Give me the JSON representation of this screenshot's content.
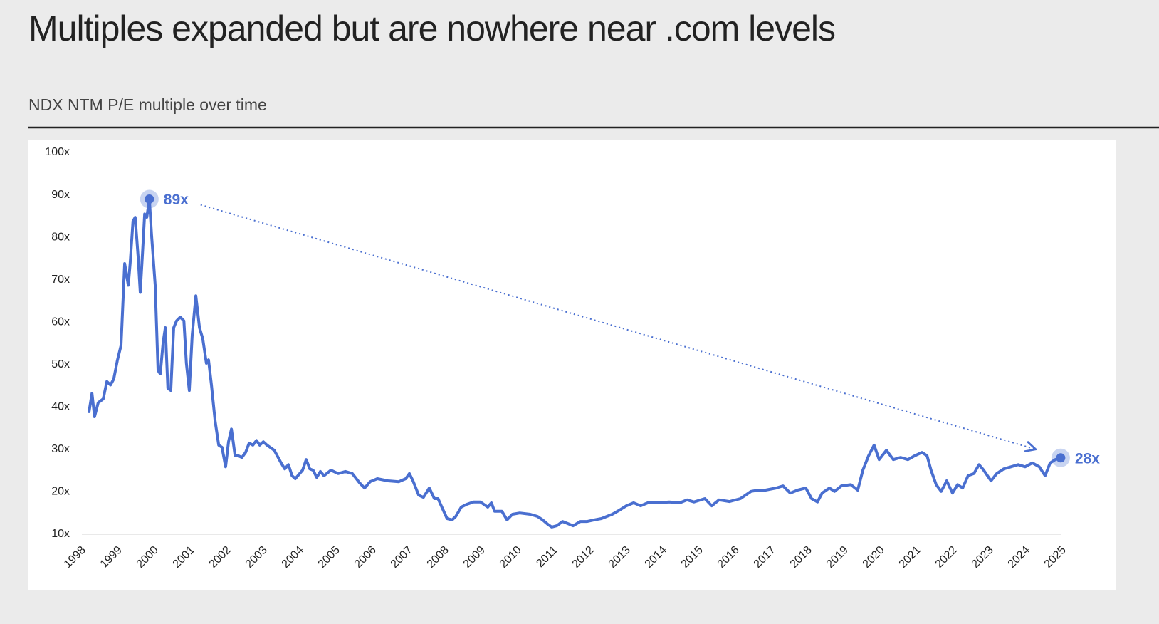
{
  "chart_data": {
    "type": "line",
    "title": "Multiples expanded but are nowhere near .com levels",
    "subtitle": "NDX NTM P/E multiple over time",
    "xlim": [
      1998,
      2025
    ],
    "xticks": [
      1998,
      1999,
      2000,
      2001,
      2002,
      2003,
      2004,
      2005,
      2006,
      2007,
      2008,
      2009,
      2010,
      2011,
      2012,
      2013,
      2014,
      2015,
      2016,
      2017,
      2018,
      2019,
      2020,
      2021,
      2022,
      2023,
      2024,
      2025
    ],
    "ylim": [
      10,
      100
    ],
    "yticks": [
      {
        "value": 10,
        "label": "10x"
      },
      {
        "value": 20,
        "label": "20x"
      },
      {
        "value": 30,
        "label": "30x"
      },
      {
        "value": 40,
        "label": "40x"
      },
      {
        "value": 50,
        "label": "50x"
      },
      {
        "value": 60,
        "label": "60x"
      },
      {
        "value": 70,
        "label": "70x"
      },
      {
        "value": 80,
        "label": "80x"
      },
      {
        "value": 90,
        "label": "90x"
      },
      {
        "value": 100,
        "label": "100x"
      }
    ],
    "grid": false,
    "series": [
      {
        "color": "#4a6fd0",
        "x": [
          1998.14,
          1998.22,
          1998.29,
          1998.39,
          1998.53,
          1998.63,
          1998.73,
          1998.82,
          1998.92,
          1999.02,
          1999.12,
          1999.22,
          1999.27,
          1999.35,
          1999.41,
          1999.49,
          1999.55,
          1999.61,
          1999.67,
          1999.73,
          1999.8,
          1999.86,
          1999.96,
          2000.04,
          2000.1,
          2000.18,
          2000.24,
          2000.31,
          2000.39,
          2000.47,
          2000.55,
          2000.65,
          2000.75,
          2000.82,
          2000.9,
          2000.98,
          2001.08,
          2001.18,
          2001.27,
          2001.37,
          2001.43,
          2001.51,
          2001.61,
          2001.71,
          2001.8,
          2001.9,
          2001.98,
          2002.06,
          2002.16,
          2002.25,
          2002.35,
          2002.45,
          2002.55,
          2002.65,
          2002.75,
          2002.84,
          2002.94,
          2003.04,
          2003.24,
          2003.43,
          2003.53,
          2003.63,
          2003.73,
          2003.82,
          2004.02,
          2004.12,
          2004.22,
          2004.31,
          2004.41,
          2004.51,
          2004.61,
          2004.8,
          2005.0,
          2005.2,
          2005.39,
          2005.59,
          2005.73,
          2005.88,
          2006.08,
          2006.37,
          2006.67,
          2006.86,
          2006.96,
          2007.06,
          2007.22,
          2007.35,
          2007.51,
          2007.65,
          2007.75,
          2007.84,
          2008.0,
          2008.14,
          2008.24,
          2008.39,
          2008.53,
          2008.73,
          2008.92,
          2009.12,
          2009.22,
          2009.31,
          2009.51,
          2009.65,
          2009.8,
          2010.0,
          2010.29,
          2010.49,
          2010.63,
          2010.78,
          2010.88,
          2011.02,
          2011.18,
          2011.33,
          2011.47,
          2011.67,
          2011.86,
          2012.06,
          2012.25,
          2012.55,
          2012.75,
          2012.94,
          2013.14,
          2013.33,
          2013.53,
          2013.82,
          2014.12,
          2014.41,
          2014.61,
          2014.8,
          2015.1,
          2015.29,
          2015.49,
          2015.78,
          2016.08,
          2016.37,
          2016.57,
          2016.76,
          2017.06,
          2017.25,
          2017.45,
          2017.65,
          2017.88,
          2018.04,
          2018.2,
          2018.33,
          2018.53,
          2018.67,
          2018.86,
          2019.12,
          2019.31,
          2019.45,
          2019.61,
          2019.76,
          2019.9,
          2020.1,
          2020.29,
          2020.49,
          2020.69,
          2020.88,
          2021.08,
          2021.22,
          2021.33,
          2021.47,
          2021.61,
          2021.76,
          2021.92,
          2022.06,
          2022.2,
          2022.35,
          2022.51,
          2022.65,
          2022.78,
          2022.98,
          2023.14,
          2023.33,
          2023.53,
          2023.73,
          2023.92,
          2024.12,
          2024.31,
          2024.47,
          2024.61,
          2024.75,
          2024.9
        ],
        "values": [
          38.9,
          43.2,
          37.7,
          41,
          41.9,
          46,
          45.2,
          46.6,
          51,
          54.5,
          73.8,
          68.7,
          73.8,
          83.8,
          84.7,
          75.4,
          67,
          76,
          85.5,
          84.7,
          89,
          80.5,
          68.7,
          48.6,
          47.8,
          55.3,
          58.7,
          44.4,
          43.9,
          58.7,
          60.3,
          61.2,
          60.3,
          50.3,
          43.9,
          57,
          66.2,
          58.7,
          56.1,
          50.3,
          51.1,
          45.2,
          36.8,
          31,
          30.5,
          25.9,
          31.8,
          34.8,
          28.5,
          28.5,
          28.1,
          29.3,
          31.5,
          31,
          32.1,
          31,
          31.8,
          31,
          29.8,
          26.8,
          25.4,
          26.4,
          23.8,
          23.1,
          25.1,
          27.6,
          25.4,
          25.1,
          23.4,
          24.8,
          23.8,
          25.1,
          24.3,
          24.8,
          24.3,
          22.1,
          20.9,
          22.4,
          23.1,
          22.6,
          22.4,
          23.1,
          24.3,
          22.6,
          19.2,
          18.7,
          20.9,
          18.4,
          18.4,
          16.7,
          13.7,
          13.4,
          14.2,
          16.4,
          17,
          17.6,
          17.6,
          16.4,
          17.4,
          15.4,
          15.4,
          13.4,
          14.7,
          15,
          14.7,
          14.2,
          13.4,
          12.3,
          11.7,
          12,
          13,
          12.5,
          12,
          13,
          13,
          13.4,
          13.7,
          14.7,
          15.7,
          16.7,
          17.4,
          16.7,
          17.4,
          17.4,
          17.6,
          17.4,
          18.1,
          17.6,
          18.4,
          16.7,
          18.1,
          17.7,
          18.4,
          20.1,
          20.4,
          20.4,
          20.9,
          21.4,
          19.7,
          20.4,
          20.9,
          18.4,
          17.6,
          19.7,
          20.9,
          20.1,
          21.4,
          21.7,
          20.4,
          25.1,
          28.5,
          31,
          27.6,
          29.8,
          27.6,
          28.1,
          27.6,
          28.5,
          29.3,
          28.5,
          25.1,
          21.7,
          20.1,
          22.6,
          19.7,
          21.7,
          20.9,
          23.8,
          24.3,
          26.4,
          25.1,
          22.6,
          24.3,
          25.4,
          25.9,
          26.4,
          25.9,
          26.8,
          25.9,
          23.8,
          26.8,
          27.6,
          28
        ]
      }
    ],
    "annotations": [
      {
        "x": 1999.8,
        "y": 89,
        "label": "89x"
      },
      {
        "x": 2024.9,
        "y": 28,
        "label": "28x"
      }
    ]
  }
}
